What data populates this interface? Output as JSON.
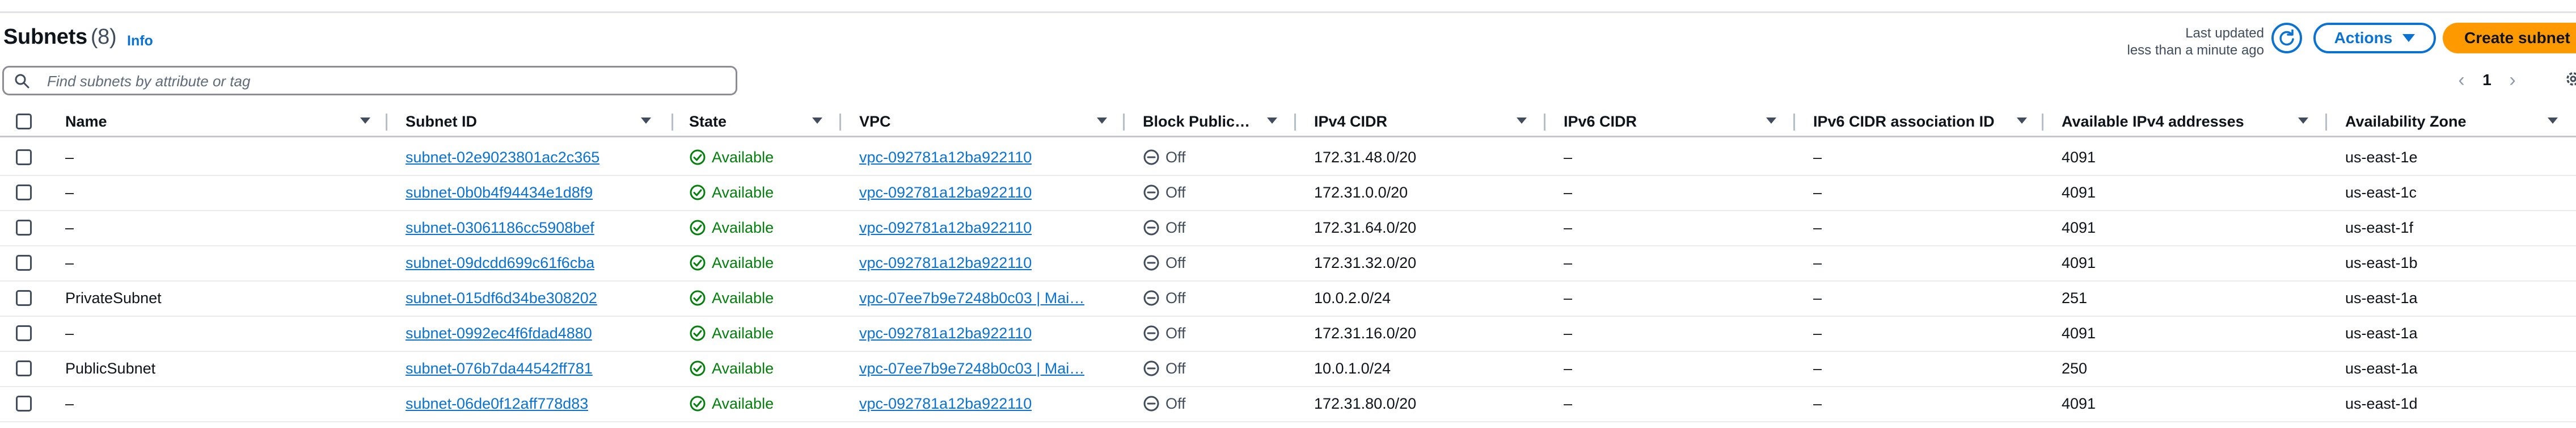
{
  "header": {
    "title": "Subnets",
    "count": "(8)",
    "info_label": "Info",
    "last_updated_line1": "Last updated",
    "last_updated_line2": "less than a minute ago",
    "actions_label": "Actions",
    "create_label": "Create subnet"
  },
  "search": {
    "placeholder": "Find subnets by attribute or tag"
  },
  "pagination": {
    "current_page": "1"
  },
  "table": {
    "columns": [
      "Name",
      "Subnet ID",
      "State",
      "VPC",
      "Block Public…",
      "IPv4 CIDR",
      "IPv6 CIDR",
      "IPv6 CIDR association ID",
      "Available IPv4 addresses",
      "Availability Zone"
    ],
    "rows": [
      {
        "name": "–",
        "subnet_id": "subnet-02e9023801ac2c365",
        "state": "Available",
        "vpc": "vpc-092781a12ba922110",
        "block": "Off",
        "ipv4": "172.31.48.0/20",
        "ipv6": "–",
        "ipv6_assoc": "–",
        "available": "4091",
        "az": "us-east-1e"
      },
      {
        "name": "–",
        "subnet_id": "subnet-0b0b4f94434e1d8f9",
        "state": "Available",
        "vpc": "vpc-092781a12ba922110",
        "block": "Off",
        "ipv4": "172.31.0.0/20",
        "ipv6": "–",
        "ipv6_assoc": "–",
        "available": "4091",
        "az": "us-east-1c"
      },
      {
        "name": "–",
        "subnet_id": "subnet-03061186cc5908bef",
        "state": "Available",
        "vpc": "vpc-092781a12ba922110",
        "block": "Off",
        "ipv4": "172.31.64.0/20",
        "ipv6": "–",
        "ipv6_assoc": "–",
        "available": "4091",
        "az": "us-east-1f"
      },
      {
        "name": "–",
        "subnet_id": "subnet-09dcdd699c61f6cba",
        "state": "Available",
        "vpc": "vpc-092781a12ba922110",
        "block": "Off",
        "ipv4": "172.31.32.0/20",
        "ipv6": "–",
        "ipv6_assoc": "–",
        "available": "4091",
        "az": "us-east-1b"
      },
      {
        "name": "PrivateSubnet",
        "subnet_id": "subnet-015df6d34be308202",
        "state": "Available",
        "vpc": "vpc-07ee7b9e7248b0c03 | Mai…",
        "block": "Off",
        "ipv4": "10.0.2.0/24",
        "ipv6": "–",
        "ipv6_assoc": "–",
        "available": "251",
        "az": "us-east-1a"
      },
      {
        "name": "–",
        "subnet_id": "subnet-0992ec4f6fdad4880",
        "state": "Available",
        "vpc": "vpc-092781a12ba922110",
        "block": "Off",
        "ipv4": "172.31.16.0/20",
        "ipv6": "–",
        "ipv6_assoc": "–",
        "available": "4091",
        "az": "us-east-1a"
      },
      {
        "name": "PublicSubnet",
        "subnet_id": "subnet-076b7da44542ff781",
        "state": "Available",
        "vpc": "vpc-07ee7b9e7248b0c03 | Mai…",
        "block": "Off",
        "ipv4": "10.0.1.0/24",
        "ipv6": "–",
        "ipv6_assoc": "–",
        "available": "250",
        "az": "us-east-1a"
      },
      {
        "name": "–",
        "subnet_id": "subnet-06de0f12aff778d83",
        "state": "Available",
        "vpc": "vpc-092781a12ba922110",
        "block": "Off",
        "ipv4": "172.31.80.0/20",
        "ipv6": "–",
        "ipv6_assoc": "–",
        "available": "4091",
        "az": "us-east-1d"
      }
    ]
  },
  "icons": {
    "refresh": "refresh-icon",
    "search": "search-icon",
    "settings": "gear-icon",
    "status_ok": "check-circle-icon",
    "status_off": "minus-circle-icon"
  },
  "colors": {
    "accent": "#0972d3",
    "primary_button": "#ff9900",
    "success": "#037f0c",
    "muted": "#414d5c"
  }
}
